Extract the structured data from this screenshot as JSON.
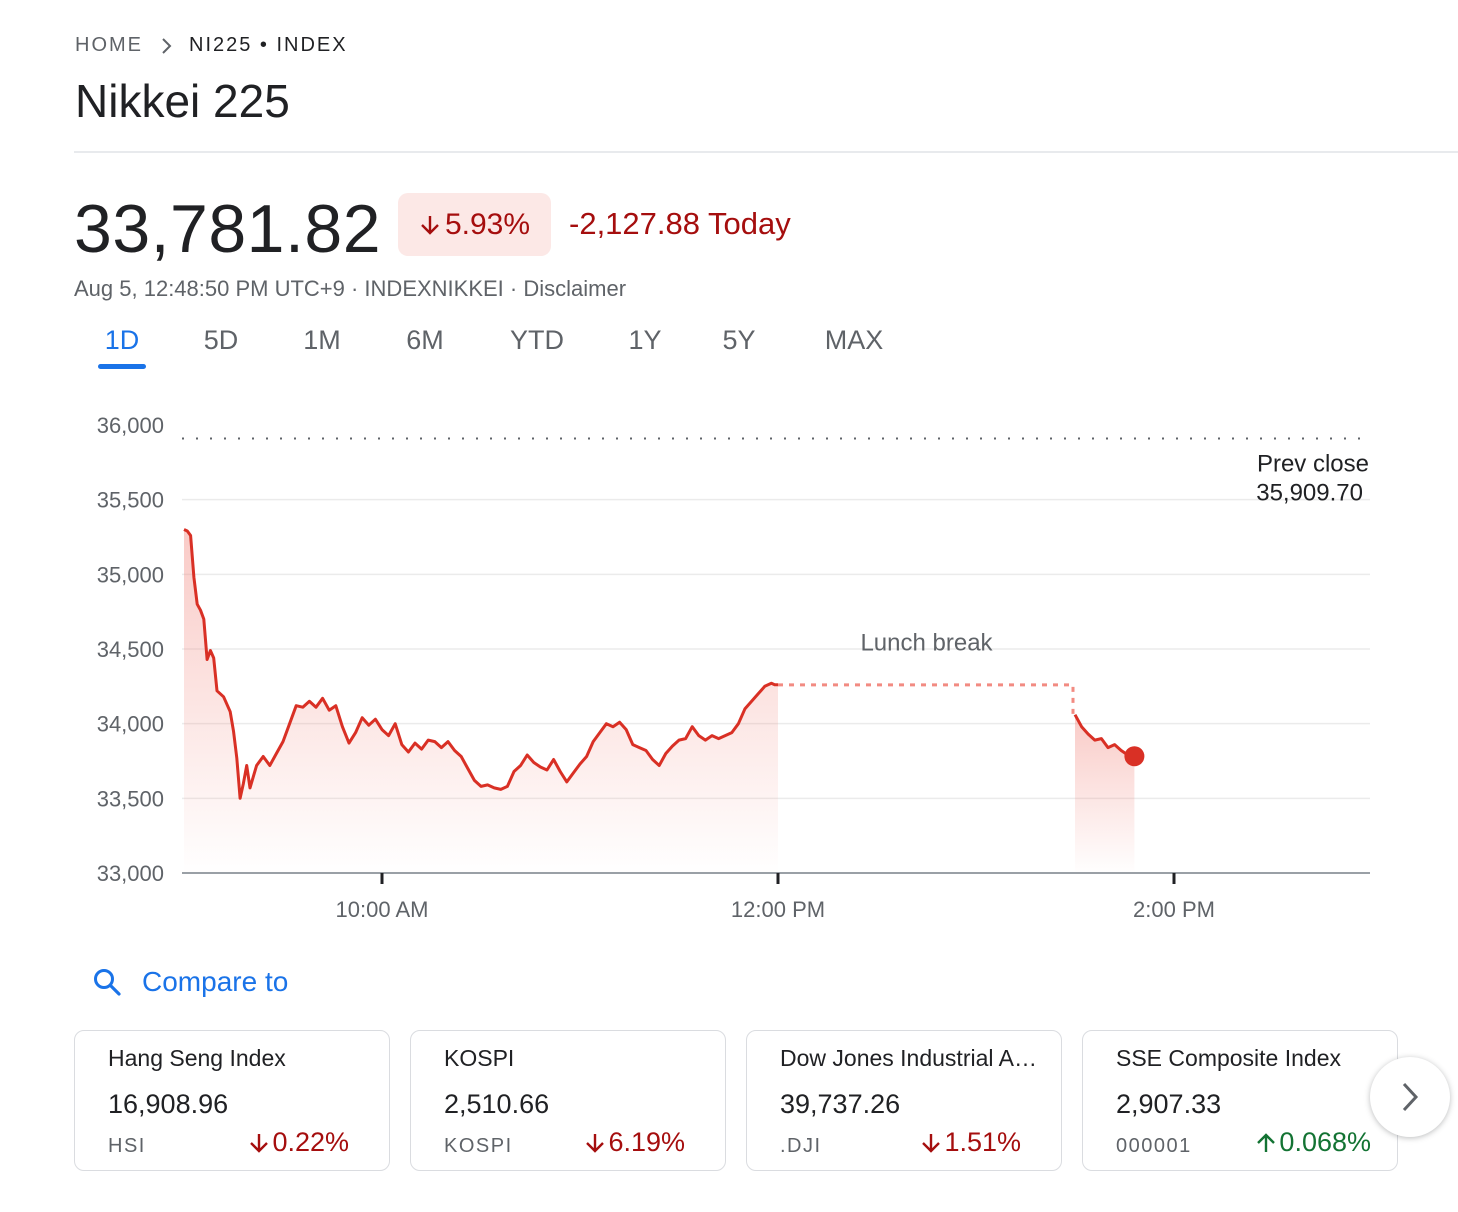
{
  "breadcrumb": {
    "home": "HOME",
    "current": "NI225 • INDEX"
  },
  "page_title": "Nikkei 225",
  "quote": {
    "price": "33,781.82",
    "percent_change": "5.93%",
    "direction": "down",
    "change_today": "-2,127.88 Today",
    "meta": "Aug 5, 12:48:50 PM UTC+9 · INDEXNIKKEI · Disclaimer"
  },
  "tabs": [
    {
      "label": "1D",
      "active": true
    },
    {
      "label": "5D"
    },
    {
      "label": "1M"
    },
    {
      "label": "6M"
    },
    {
      "label": "YTD"
    },
    {
      "label": "1Y"
    },
    {
      "label": "5Y"
    },
    {
      "label": "MAX"
    }
  ],
  "chart_data": {
    "type": "line",
    "ylim": [
      33000,
      36000
    ],
    "y_ticks": [
      36000,
      35500,
      35000,
      34500,
      34000,
      33500,
      33000
    ],
    "y_tick_labels": [
      "36,000",
      "35,500",
      "35,000",
      "34,500",
      "34,000",
      "33,500",
      "33,000"
    ],
    "x_tick_labels": [
      "10:00 AM",
      "12:00 PM",
      "2:00 PM"
    ],
    "prev_close": {
      "label": "Prev close",
      "value": 35909.7,
      "value_label": "35,909.70"
    },
    "lunch_break_label": "Lunch break",
    "line_color": "#d93025",
    "morning_session": [
      [
        "9:00",
        35300
      ],
      [
        "9:01",
        35290
      ],
      [
        "9:02",
        35260
      ],
      [
        "9:03",
        34980
      ],
      [
        "9:04",
        34800
      ],
      [
        "9:05",
        34760
      ],
      [
        "9:06",
        34700
      ],
      [
        "9:07",
        34430
      ],
      [
        "9:08",
        34490
      ],
      [
        "9:09",
        34440
      ],
      [
        "9:10",
        34220
      ],
      [
        "9:12",
        34180
      ],
      [
        "9:14",
        34080
      ],
      [
        "9:15",
        33950
      ],
      [
        "9:16",
        33770
      ],
      [
        "9:17",
        33500
      ],
      [
        "9:18",
        33600
      ],
      [
        "9:19",
        33720
      ],
      [
        "9:20",
        33570
      ],
      [
        "9:22",
        33720
      ],
      [
        "9:24",
        33780
      ],
      [
        "9:26",
        33720
      ],
      [
        "9:28",
        33800
      ],
      [
        "9:30",
        33880
      ],
      [
        "9:32",
        34000
      ],
      [
        "9:34",
        34120
      ],
      [
        "9:36",
        34110
      ],
      [
        "9:38",
        34150
      ],
      [
        "9:40",
        34110
      ],
      [
        "9:42",
        34170
      ],
      [
        "9:44",
        34090
      ],
      [
        "9:46",
        34120
      ],
      [
        "9:48",
        33980
      ],
      [
        "9:50",
        33870
      ],
      [
        "9:52",
        33940
      ],
      [
        "9:54",
        34040
      ],
      [
        "9:56",
        33990
      ],
      [
        "9:58",
        34030
      ],
      [
        "10:00",
        33960
      ],
      [
        "10:02",
        33920
      ],
      [
        "10:04",
        34000
      ],
      [
        "10:06",
        33860
      ],
      [
        "10:08",
        33810
      ],
      [
        "10:10",
        33870
      ],
      [
        "10:12",
        33830
      ],
      [
        "10:14",
        33890
      ],
      [
        "10:16",
        33880
      ],
      [
        "10:18",
        33840
      ],
      [
        "10:20",
        33880
      ],
      [
        "10:22",
        33820
      ],
      [
        "10:24",
        33780
      ],
      [
        "10:26",
        33700
      ],
      [
        "10:28",
        33620
      ],
      [
        "10:30",
        33580
      ],
      [
        "10:32",
        33590
      ],
      [
        "10:34",
        33570
      ],
      [
        "10:36",
        33560
      ],
      [
        "10:38",
        33580
      ],
      [
        "10:40",
        33680
      ],
      [
        "10:42",
        33720
      ],
      [
        "10:44",
        33790
      ],
      [
        "10:46",
        33740
      ],
      [
        "10:48",
        33710
      ],
      [
        "10:50",
        33690
      ],
      [
        "10:52",
        33760
      ],
      [
        "10:54",
        33680
      ],
      [
        "10:56",
        33610
      ],
      [
        "10:58",
        33670
      ],
      [
        "11:00",
        33730
      ],
      [
        "11:02",
        33780
      ],
      [
        "11:04",
        33880
      ],
      [
        "11:06",
        33940
      ],
      [
        "11:08",
        34000
      ],
      [
        "11:10",
        33980
      ],
      [
        "11:12",
        34010
      ],
      [
        "11:14",
        33960
      ],
      [
        "11:16",
        33860
      ],
      [
        "11:18",
        33840
      ],
      [
        "11:20",
        33820
      ],
      [
        "11:22",
        33760
      ],
      [
        "11:24",
        33720
      ],
      [
        "11:26",
        33800
      ],
      [
        "11:28",
        33850
      ],
      [
        "11:30",
        33890
      ],
      [
        "11:32",
        33900
      ],
      [
        "11:34",
        33980
      ],
      [
        "11:36",
        33920
      ],
      [
        "11:38",
        33890
      ],
      [
        "11:40",
        33920
      ],
      [
        "11:42",
        33900
      ],
      [
        "11:44",
        33920
      ],
      [
        "11:46",
        33940
      ],
      [
        "11:48",
        34000
      ],
      [
        "11:50",
        34100
      ],
      [
        "11:52",
        34150
      ],
      [
        "11:54",
        34200
      ],
      [
        "11:56",
        34250
      ],
      [
        "11:58",
        34270
      ],
      [
        "11:59",
        34260
      ],
      [
        "12:00",
        34260
      ]
    ],
    "lunch_flat_value": 34260,
    "afternoon_session": [
      [
        "13:30",
        34060
      ],
      [
        "13:32",
        33980
      ],
      [
        "13:34",
        33930
      ],
      [
        "13:36",
        33890
      ],
      [
        "13:38",
        33900
      ],
      [
        "13:40",
        33840
      ],
      [
        "13:42",
        33860
      ],
      [
        "13:44",
        33820
      ],
      [
        "13:46",
        33790
      ],
      [
        "13:48",
        33781.82
      ]
    ]
  },
  "compare": {
    "label": "Compare to"
  },
  "related": [
    {
      "name": "Hang Seng Index",
      "value": "16,908.96",
      "symbol": "HSI",
      "change": "0.22%",
      "direction": "down"
    },
    {
      "name": "KOSPI",
      "value": "2,510.66",
      "symbol": "KOSPI",
      "change": "6.19%",
      "direction": "down"
    },
    {
      "name": "Dow Jones Industrial A…",
      "value": "39,737.26",
      "symbol": ".DJI",
      "change": "1.51%",
      "direction": "down"
    },
    {
      "name": "SSE Composite Index",
      "value": "2,907.33",
      "symbol": "000001",
      "change": "0.068%",
      "direction": "up"
    }
  ],
  "icons": {
    "breadcrumb_sep": "chevron-right-icon",
    "compare": "search-icon",
    "next": "chevron-right-icon"
  },
  "colors": {
    "accent": "#1a73e8",
    "negative": "#a50e0e",
    "positive": "#137333",
    "line": "#d93025"
  }
}
